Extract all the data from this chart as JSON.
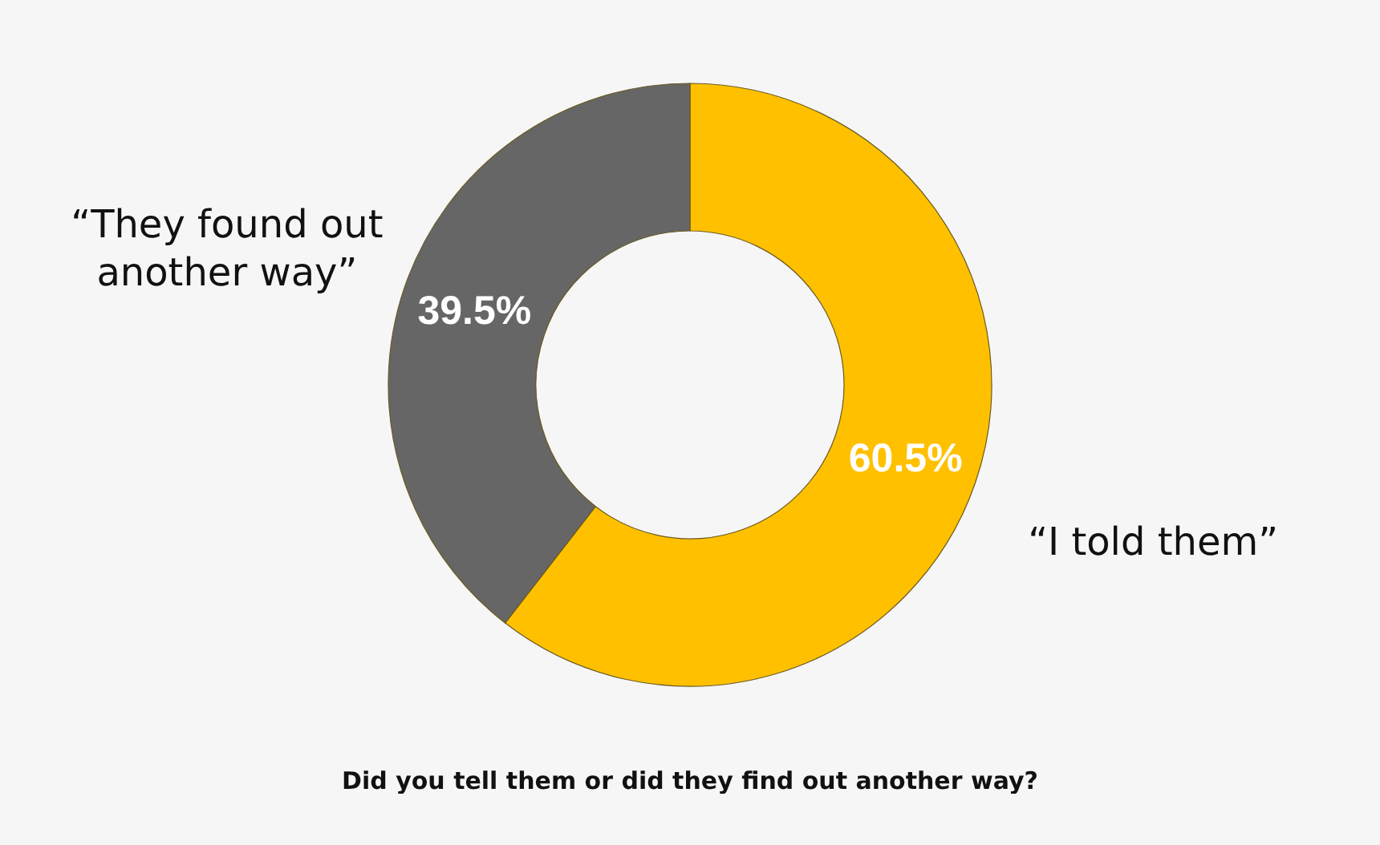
{
  "chart_data": {
    "type": "donut",
    "categories": [
      "“I told them”",
      "“They found out another way”"
    ],
    "values": [
      60.5,
      39.5
    ],
    "value_labels": [
      "60.5%",
      "39.5%"
    ],
    "colors": [
      "#ffc000",
      "#666666"
    ],
    "annotations": [
      "Did you tell them or did they find out another way?"
    ],
    "legend": false
  }
}
